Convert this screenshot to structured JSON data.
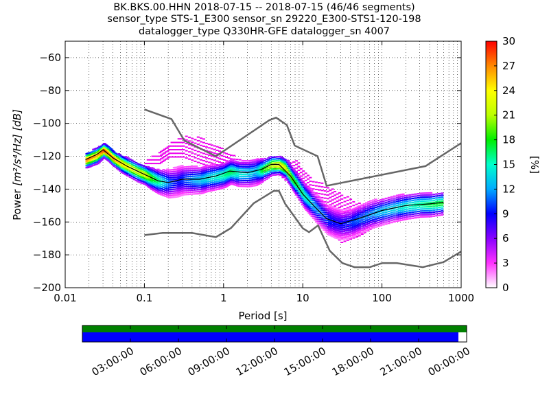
{
  "title_lines": [
    "BK.BKS.00.HHN   2018-07-15 -- 2018-07-15  (46/46 segments)",
    "sensor_type STS-1_E300 sensor_sn 29220_E300-STS1-120-198",
    "datalogger_type Q330HR-GFE datalogger_sn 4007"
  ],
  "chart_data": {
    "type": "heatmap",
    "xlabel": "Period [s]",
    "ylabel_prefix": "Power",
    "ylabel_unit": "[m²/s⁴/Hz] [dB]",
    "x_scale": "log",
    "xlim": [
      0.01,
      1000
    ],
    "ylim": [
      -200,
      -50
    ],
    "x_ticks": [
      0.01,
      0.1,
      1,
      10,
      100,
      1000
    ],
    "x_tick_labels": [
      "0.01",
      "0.1",
      "1",
      "10",
      "100",
      "1000"
    ],
    "y_ticks": [
      -200,
      -180,
      -160,
      -140,
      -120,
      -100,
      -80,
      -60
    ],
    "y_tick_labels": [
      "−200",
      "−180",
      "−160",
      "−140",
      "−120",
      "−100",
      "−80",
      "−60"
    ],
    "grid": "dotted",
    "colorbar": {
      "label": "[%]",
      "range": [
        0,
        30
      ],
      "ticks": [
        0,
        3,
        6,
        9,
        12,
        15,
        18,
        21,
        24,
        27,
        30
      ],
      "colormap": [
        "#ffffff",
        "#ff33ff",
        "#8800ff",
        "#0000ff",
        "#00aaff",
        "#00ffcc",
        "#00ee00",
        "#bbff00",
        "#ffff00",
        "#ff8800",
        "#ff0000"
      ]
    },
    "noise_models": [
      {
        "name": "NHNM",
        "color": "#666666",
        "points": [
          [
            0.1,
            -91.5
          ],
          [
            0.22,
            -97.4
          ],
          [
            0.32,
            -110.5
          ],
          [
            0.8,
            -120
          ],
          [
            3.8,
            -98
          ],
          [
            4.6,
            -96.5
          ],
          [
            6.3,
            -101
          ],
          [
            7.9,
            -113.5
          ],
          [
            15.4,
            -120
          ],
          [
            20,
            -138
          ],
          [
            354.8,
            -126
          ],
          [
            1000,
            -112
          ]
        ]
      },
      {
        "name": "NLNM",
        "color": "#666666",
        "points": [
          [
            0.1,
            -168
          ],
          [
            0.17,
            -166.7
          ],
          [
            0.4,
            -166.7
          ],
          [
            0.8,
            -169.2
          ],
          [
            1.24,
            -163.7
          ],
          [
            2.4,
            -148.6
          ],
          [
            4.3,
            -141.1
          ],
          [
            5,
            -141.1
          ],
          [
            6,
            -149
          ],
          [
            10,
            -163.8
          ],
          [
            12,
            -166.2
          ],
          [
            15.6,
            -162.1
          ],
          [
            21.9,
            -177.5
          ],
          [
            31.6,
            -185
          ],
          [
            45,
            -187.5
          ],
          [
            70,
            -187.5
          ],
          [
            101,
            -185
          ],
          [
            154,
            -185
          ],
          [
            328,
            -187.5
          ],
          [
            600,
            -184.4
          ],
          [
            1000,
            -178
          ]
        ]
      }
    ],
    "mode_curve": {
      "color": "#000000",
      "points": [
        [
          0.018,
          -122
        ],
        [
          0.025,
          -119
        ],
        [
          0.03,
          -116
        ],
        [
          0.04,
          -121
        ],
        [
          0.06,
          -126
        ],
        [
          0.1,
          -131
        ],
        [
          0.15,
          -135
        ],
        [
          0.2,
          -136
        ],
        [
          0.3,
          -134
        ],
        [
          0.5,
          -134
        ],
        [
          0.8,
          -132
        ],
        [
          1.2,
          -129
        ],
        [
          2,
          -130
        ],
        [
          3,
          -128
        ],
        [
          4,
          -125
        ],
        [
          5,
          -125
        ],
        [
          7,
          -132
        ],
        [
          10,
          -143
        ],
        [
          15,
          -152
        ],
        [
          20,
          -158
        ],
        [
          30,
          -161
        ],
        [
          50,
          -158
        ],
        [
          100,
          -153
        ],
        [
          200,
          -150
        ],
        [
          400,
          -149
        ],
        [
          600,
          -148
        ]
      ]
    },
    "psd_density": [
      {
        "period": 0.018,
        "db": -122,
        "pct": 28
      },
      {
        "period": 0.02,
        "db": -121,
        "pct": 27
      },
      {
        "period": 0.025,
        "db": -119,
        "pct": 26
      },
      {
        "period": 0.03,
        "db": -116,
        "pct": 29
      },
      {
        "period": 0.035,
        "db": -118,
        "pct": 27
      },
      {
        "period": 0.04,
        "db": -121,
        "pct": 28
      },
      {
        "period": 0.05,
        "db": -124,
        "pct": 25
      },
      {
        "period": 0.06,
        "db": -126,
        "pct": 24
      },
      {
        "period": 0.08,
        "db": -129,
        "pct": 22
      },
      {
        "period": 0.1,
        "db": -131,
        "pct": 23
      },
      {
        "period": 0.12,
        "db": -133,
        "pct": 19
      },
      {
        "period": 0.15,
        "db": -135,
        "pct": 16
      },
      {
        "period": 0.2,
        "db": -136,
        "pct": 11
      },
      {
        "period": 0.25,
        "db": -135,
        "pct": 9
      },
      {
        "period": 0.3,
        "db": -134,
        "pct": 10
      },
      {
        "period": 0.4,
        "db": -134,
        "pct": 12
      },
      {
        "period": 0.5,
        "db": -134,
        "pct": 13
      },
      {
        "period": 0.6,
        "db": -133,
        "pct": 14
      },
      {
        "period": 0.8,
        "db": -132,
        "pct": 15
      },
      {
        "period": 1,
        "db": -131,
        "pct": 16
      },
      {
        "period": 1.2,
        "db": -129,
        "pct": 17
      },
      {
        "period": 1.5,
        "db": -130,
        "pct": 15
      },
      {
        "period": 2,
        "db": -130,
        "pct": 14
      },
      {
        "period": 2.5,
        "db": -129,
        "pct": 13
      },
      {
        "period": 3,
        "db": -128,
        "pct": 18
      },
      {
        "period": 4,
        "db": -125,
        "pct": 22
      },
      {
        "period": 5,
        "db": -125,
        "pct": 24
      },
      {
        "period": 6,
        "db": -127,
        "pct": 22
      },
      {
        "period": 7,
        "db": -132,
        "pct": 20
      },
      {
        "period": 8,
        "db": -136,
        "pct": 18
      },
      {
        "period": 10,
        "db": -143,
        "pct": 16
      },
      {
        "period": 12,
        "db": -147,
        "pct": 14
      },
      {
        "period": 15,
        "db": -152,
        "pct": 12
      },
      {
        "period": 20,
        "db": -158,
        "pct": 10
      },
      {
        "period": 25,
        "db": -160,
        "pct": 9
      },
      {
        "period": 30,
        "db": -161,
        "pct": 9
      },
      {
        "period": 40,
        "db": -160,
        "pct": 10
      },
      {
        "period": 50,
        "db": -158,
        "pct": 11
      },
      {
        "period": 70,
        "db": -155,
        "pct": 12
      },
      {
        "period": 100,
        "db": -153,
        "pct": 13
      },
      {
        "period": 150,
        "db": -151,
        "pct": 14
      },
      {
        "period": 200,
        "db": -150,
        "pct": 15
      },
      {
        "period": 300,
        "db": -149,
        "pct": 16
      },
      {
        "period": 400,
        "db": -149,
        "pct": 17
      },
      {
        "period": 600,
        "db": -148,
        "pct": 18
      }
    ],
    "outlier_band": [
      {
        "period": 0.1,
        "db_low": -124,
        "db_high": -122
      },
      {
        "period": 0.15,
        "db_low": -124,
        "db_high": -117
      },
      {
        "period": 0.2,
        "db_low": -120,
        "db_high": -112
      },
      {
        "period": 0.3,
        "db_low": -120,
        "db_high": -107
      },
      {
        "period": 0.5,
        "db_low": -124,
        "db_high": -108
      },
      {
        "period": 0.8,
        "db_low": -127,
        "db_high": -113
      },
      {
        "period": 1.2,
        "db_low": -130,
        "db_high": -118
      },
      {
        "period": 2,
        "db_low": -131,
        "db_high": -124
      },
      {
        "period": 5,
        "db_low": -131,
        "db_high": -122
      },
      {
        "period": 8,
        "db_low": -140,
        "db_high": -122
      },
      {
        "period": 12,
        "db_low": -148,
        "db_high": -132
      },
      {
        "period": 20,
        "db_low": -163,
        "db_high": -138
      },
      {
        "period": 30,
        "db_low": -172,
        "db_high": -142
      },
      {
        "period": 50,
        "db_low": -168,
        "db_high": -148
      },
      {
        "period": 80,
        "db_low": -162,
        "db_high": -152
      }
    ]
  },
  "timeline": {
    "coverage_color": "#008000",
    "data_color": "#0000ff",
    "data_fraction": 0.9785,
    "tick_labels": [
      "03:00:00",
      "06:00:00",
      "09:00:00",
      "12:00:00",
      "15:00:00",
      "18:00:00",
      "21:00:00",
      "00:00:00"
    ]
  }
}
